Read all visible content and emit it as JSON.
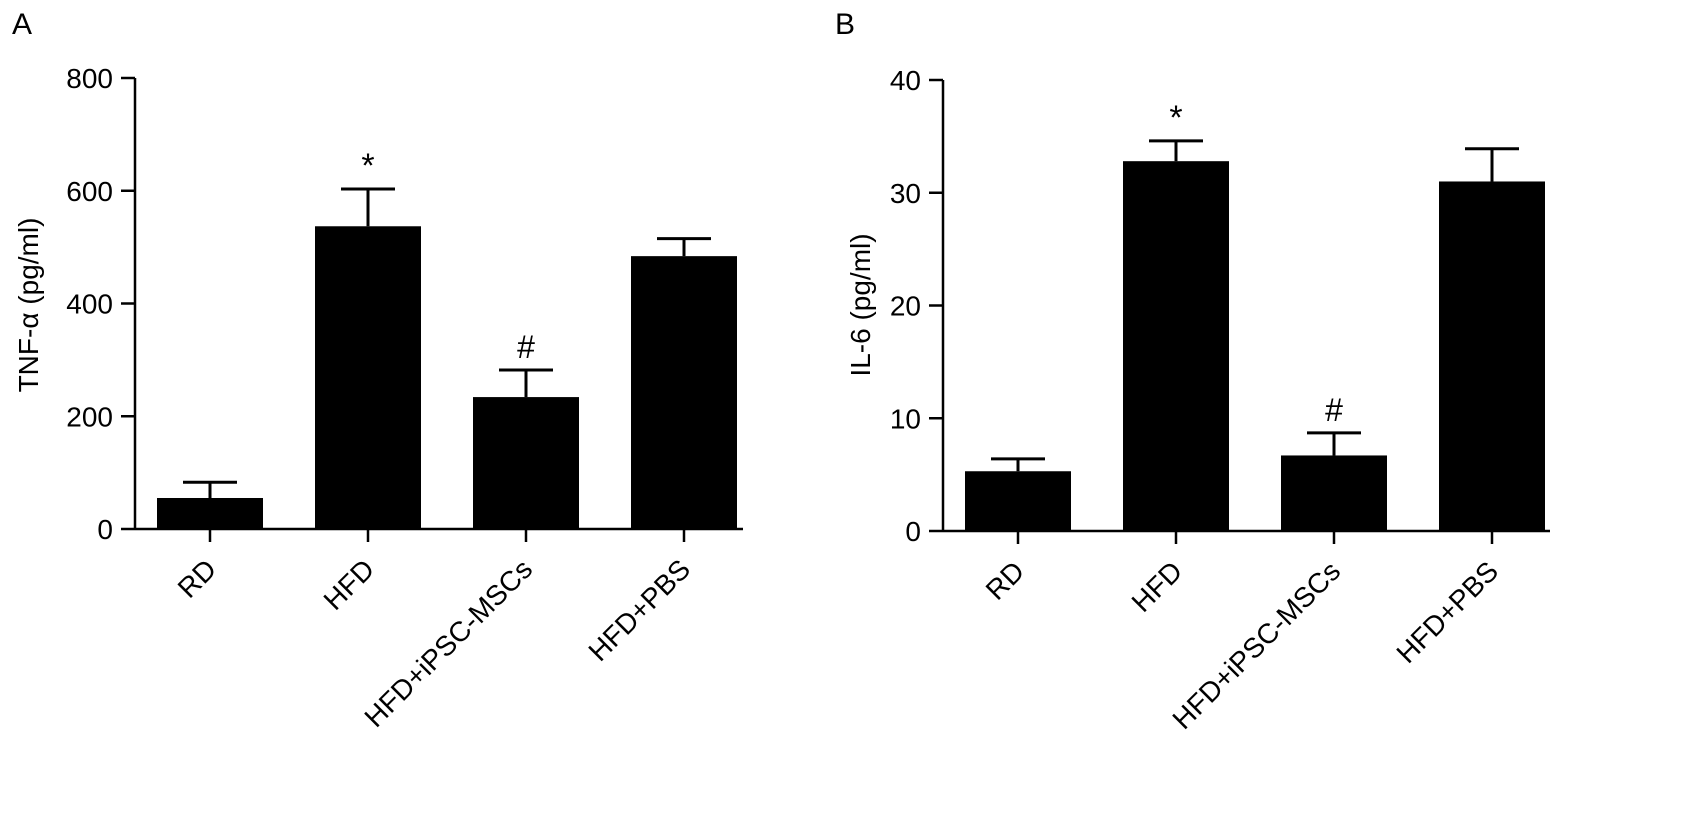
{
  "chart_data": [
    {
      "panel_label": "A",
      "type": "bar",
      "ylabel": "TNF-α (pg/ml)",
      "xlabel": "",
      "categories": [
        "RD",
        "HFD",
        "HFD+iPSC-MSCs",
        "HFD+PBS"
      ],
      "values": [
        55,
        537,
        234,
        484
      ],
      "errors": [
        28,
        66,
        48,
        31
      ],
      "annotations": [
        "",
        "*",
        "#",
        ""
      ],
      "ylim": [
        0,
        800
      ],
      "yticks": [
        "0",
        "200",
        "400",
        "600",
        "800"
      ],
      "ytick_values": [
        0,
        200,
        400,
        600,
        800
      ],
      "bar_color": "#000000",
      "grid": false,
      "legend": "none"
    },
    {
      "panel_label": "B",
      "type": "bar",
      "ylabel": "IL-6 (pg/ml)",
      "xlabel": "",
      "categories": [
        "RD",
        "HFD",
        "HFD+iPSC-MSCs",
        "HFD+PBS"
      ],
      "values": [
        5.3,
        32.8,
        6.7,
        31.0
      ],
      "errors": [
        1.1,
        1.8,
        2.0,
        2.9
      ],
      "annotations": [
        "",
        "*",
        "#",
        ""
      ],
      "ylim": [
        0,
        40
      ],
      "yticks": [
        "0",
        "10",
        "20",
        "30",
        "40"
      ],
      "ytick_values": [
        0,
        10,
        20,
        30,
        40
      ],
      "bar_color": "#000000",
      "grid": false,
      "legend": "none"
    }
  ]
}
